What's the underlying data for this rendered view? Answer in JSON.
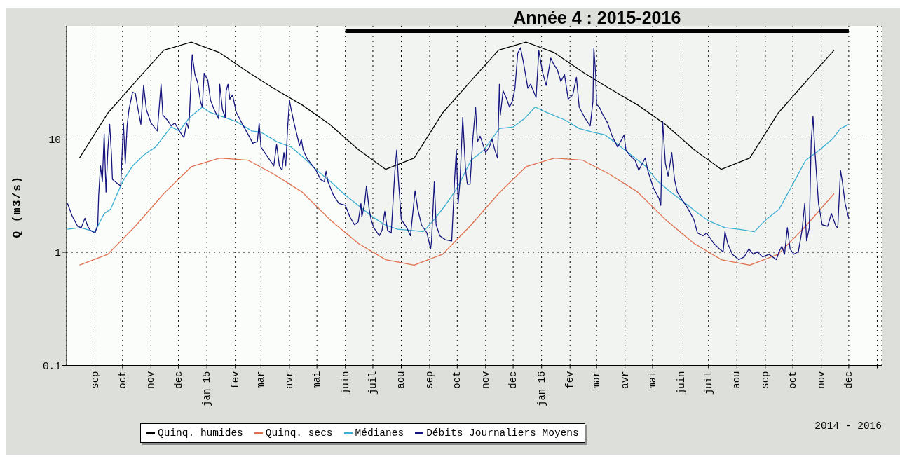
{
  "chart_data": {
    "type": "line",
    "ylabel": "Q (m3/s)",
    "annotations": [
      "2014 - 2016"
    ],
    "xlim": [
      "2014-08-01",
      "2017-01-06"
    ],
    "xticks": [
      {
        "value": "2014-09-01",
        "label": "sep"
      },
      {
        "value": "2014-10-01",
        "label": "oct"
      },
      {
        "value": "2014-11-01",
        "label": "nov"
      },
      {
        "value": "2014-12-01",
        "label": "dec"
      },
      {
        "value": "2015-01-01",
        "label": "jan 15"
      },
      {
        "value": "2015-02-01",
        "label": "fev"
      },
      {
        "value": "2015-03-01",
        "label": "mar"
      },
      {
        "value": "2015-04-01",
        "label": "avr"
      },
      {
        "value": "2015-05-01",
        "label": "mai"
      },
      {
        "value": "2015-06-01",
        "label": "juin"
      },
      {
        "value": "2015-07-01",
        "label": "juil"
      },
      {
        "value": "2015-08-01",
        "label": "aou"
      },
      {
        "value": "2015-09-01",
        "label": "sep"
      },
      {
        "value": "2015-10-01",
        "label": "oct"
      },
      {
        "value": "2015-11-01",
        "label": "nov"
      },
      {
        "value": "2015-12-01",
        "label": "dec"
      },
      {
        "value": "2016-01-01",
        "label": "jan 16"
      },
      {
        "value": "2016-02-01",
        "label": "fev"
      },
      {
        "value": "2016-03-01",
        "label": "mar"
      },
      {
        "value": "2016-04-01",
        "label": "avr"
      },
      {
        "value": "2016-05-01",
        "label": "mai"
      },
      {
        "value": "2016-06-01",
        "label": "juin"
      },
      {
        "value": "2016-07-01",
        "label": "juil"
      },
      {
        "value": "2016-08-01",
        "label": "aou"
      },
      {
        "value": "2016-09-01",
        "label": "sep"
      },
      {
        "value": "2016-10-01",
        "label": "oct"
      },
      {
        "value": "2016-11-01",
        "label": "nov"
      },
      {
        "value": "2016-12-01",
        "label": "dec"
      },
      {
        "value": "2017-01-01",
        "label": null
      }
    ],
    "ylim": [
      0.1,
      100
    ],
    "yticks": [
      0.1,
      1,
      10
    ],
    "log": true,
    "grid": true,
    "legend": "bottom",
    "bands": [
      {
        "axis": "x",
        "from": "2015-06-01",
        "to": "2016-12-01",
        "label": "Année 4 : 2015-2016",
        "color": "#000000"
      }
    ],
    "series": [
      {
        "name": "Quinq. humides",
        "color": "#000000",
        "x": [
          "2014-08-15",
          "2014-09-15",
          "2014-10-15",
          "2014-11-15",
          "2014-12-15",
          "2015-01-15",
          "2015-02-15",
          "2015-03-15",
          "2015-04-15",
          "2015-05-15",
          "2015-06-15",
          "2015-07-15",
          "2015-08-15",
          "2015-09-15",
          "2015-10-15",
          "2015-11-15",
          "2015-12-15",
          "2016-01-15",
          "2016-02-15",
          "2016-03-15",
          "2016-04-15",
          "2016-05-15",
          "2016-06-15",
          "2016-07-15",
          "2016-08-15",
          "2016-09-15",
          "2016-10-15",
          "2016-11-15"
        ],
        "values": [
          6.8,
          17,
          32,
          61,
          72,
          58,
          39,
          28,
          20,
          13.5,
          8.1,
          5.4,
          6.8,
          17,
          32,
          61,
          72,
          58,
          39,
          28,
          20,
          13.5,
          8.1,
          5.4,
          6.8,
          17,
          32,
          61
        ]
      },
      {
        "name": "Quinq. secs",
        "color": "#e0704e",
        "x": [
          "2014-08-15",
          "2014-09-15",
          "2014-10-15",
          "2014-11-15",
          "2014-12-15",
          "2015-01-15",
          "2015-02-15",
          "2015-03-15",
          "2015-04-15",
          "2015-05-15",
          "2015-06-15",
          "2015-07-15",
          "2015-08-15",
          "2015-09-15",
          "2015-10-15",
          "2015-11-15",
          "2015-12-15",
          "2016-01-15",
          "2016-02-15",
          "2016-03-15",
          "2016-04-15",
          "2016-05-15",
          "2016-06-15",
          "2016-07-15",
          "2016-08-15",
          "2016-09-15",
          "2016-10-15",
          "2016-11-15"
        ],
        "values": [
          0.77,
          0.96,
          1.7,
          3.3,
          5.7,
          6.8,
          6.5,
          4.9,
          3.4,
          1.95,
          1.2,
          0.86,
          0.77,
          0.96,
          1.7,
          3.3,
          5.7,
          6.8,
          6.5,
          4.9,
          3.4,
          1.95,
          1.2,
          0.86,
          0.77,
          0.96,
          1.7,
          3.3
        ]
      },
      {
        "name": "Médianes",
        "color": "#3aaed2",
        "x": [
          "2014-08-02",
          "2014-08-16",
          "2014-09-01",
          "2014-09-11",
          "2014-09-18",
          "2014-10-01",
          "2014-10-12",
          "2014-10-24",
          "2014-11-06",
          "2014-11-17",
          "2014-11-23",
          "2014-12-02",
          "2014-12-13",
          "2014-12-27",
          "2015-01-04",
          "2015-01-21",
          "2015-02-02",
          "2015-02-19",
          "2015-03-01",
          "2015-03-18",
          "2015-04-03",
          "2015-04-17",
          "2015-05-02",
          "2015-05-16",
          "2015-06-01",
          "2015-06-15",
          "2015-07-01",
          "2015-07-14",
          "2015-07-28",
          "2015-08-13",
          "2015-08-25",
          "2015-09-06",
          "2015-09-18",
          "2015-10-01",
          "2015-10-16",
          "2015-10-30",
          "2015-11-16",
          "2015-12-01",
          "2015-12-13",
          "2015-12-25",
          "2016-01-06",
          "2016-01-27",
          "2016-02-11",
          "2016-02-26",
          "2016-03-10",
          "2016-03-24",
          "2016-04-08",
          "2016-04-23",
          "2016-05-07",
          "2016-05-21",
          "2016-06-06",
          "2016-06-20",
          "2016-07-01",
          "2016-07-19",
          "2016-08-03",
          "2016-08-20",
          "2016-09-02",
          "2016-09-16",
          "2016-10-01",
          "2016-10-15",
          "2016-10-30",
          "2016-11-13",
          "2016-11-22",
          "2016-12-01"
        ],
        "values": [
          1.6,
          1.65,
          1.52,
          2.2,
          2.4,
          4.2,
          5.8,
          7.2,
          8.5,
          11.1,
          12.8,
          11.8,
          15.5,
          19.2,
          17.3,
          15.5,
          14.3,
          11.8,
          11.5,
          9.5,
          8.5,
          6.8,
          5.2,
          4.2,
          3.2,
          2.6,
          2.05,
          1.75,
          1.6,
          1.56,
          1.52,
          1.95,
          2.6,
          3.7,
          6.5,
          8.0,
          12.4,
          12.8,
          15.1,
          19.2,
          17.3,
          14.7,
          12.4,
          11.5,
          10.9,
          9.0,
          7.2,
          5.8,
          4.2,
          3.4,
          2.7,
          2.2,
          1.9,
          1.65,
          1.6,
          1.52,
          1.95,
          2.4,
          4.0,
          6.5,
          8.0,
          10,
          12.4,
          13.5
        ]
      },
      {
        "name": "Débits Journaliers Moyens",
        "color": "#15157f",
        "x": [
          "2014-08-02",
          "2014-08-07",
          "2014-08-13",
          "2014-08-17",
          "2014-08-21",
          "2014-08-24",
          "2014-08-27",
          "2014-09-01",
          "2014-09-04",
          "2014-09-05",
          "2014-09-07",
          "2014-09-09",
          "2014-09-11",
          "2014-09-13",
          "2014-09-15",
          "2014-09-17",
          "2014-09-19",
          "2014-09-20",
          "2014-09-23",
          "2014-09-29",
          "2014-10-02",
          "2014-10-04",
          "2014-10-06",
          "2014-10-08",
          "2014-10-12",
          "2014-10-15",
          "2014-10-18",
          "2014-10-21",
          "2014-10-24",
          "2014-10-27",
          "2014-11-01",
          "2014-11-08",
          "2014-11-12",
          "2014-11-14",
          "2014-11-19",
          "2014-11-23",
          "2014-11-27",
          "2014-12-02",
          "2014-12-07",
          "2014-12-10",
          "2014-12-12",
          "2014-12-13",
          "2014-12-16",
          "2014-12-19",
          "2014-12-22",
          "2014-12-25",
          "2014-12-27",
          "2014-12-29",
          "2015-01-02",
          "2015-01-05",
          "2015-01-09",
          "2015-01-14",
          "2015-01-15",
          "2015-01-18",
          "2015-01-21",
          "2015-01-22",
          "2015-01-24",
          "2015-01-26",
          "2015-01-29",
          "2015-02-02",
          "2015-02-08",
          "2015-02-16",
          "2015-02-20",
          "2015-02-25",
          "2015-02-27",
          "2015-03-01",
          "2015-03-07",
          "2015-03-15",
          "2015-03-18",
          "2015-03-21",
          "2015-03-24",
          "2015-03-26",
          "2015-03-28",
          "2015-03-30",
          "2015-04-01",
          "2015-04-03",
          "2015-04-06",
          "2015-04-09",
          "2015-04-12",
          "2015-04-14",
          "2015-04-16",
          "2015-04-20",
          "2015-04-25",
          "2015-04-30",
          "2015-05-05",
          "2015-05-09",
          "2015-05-11",
          "2015-05-13",
          "2015-05-19",
          "2015-05-25",
          "2015-06-01",
          "2015-06-06",
          "2015-06-11",
          "2015-06-15",
          "2015-06-18",
          "2015-06-19",
          "2015-06-22",
          "2015-06-24",
          "2015-06-27",
          "2015-06-29",
          "2015-07-02",
          "2015-07-08",
          "2015-07-11",
          "2015-07-14",
          "2015-07-17",
          "2015-07-21",
          "2015-07-25",
          "2015-07-27",
          "2015-07-29",
          "2015-08-01",
          "2015-08-07",
          "2015-08-11",
          "2015-08-14",
          "2015-08-16",
          "2015-08-19",
          "2015-08-23",
          "2015-08-29",
          "2015-09-02",
          "2015-09-03",
          "2015-09-06",
          "2015-09-08",
          "2015-09-12",
          "2015-09-18",
          "2015-09-25",
          "2015-09-28",
          "2015-09-30",
          "2015-10-02",
          "2015-10-04",
          "2015-10-07",
          "2015-10-10",
          "2015-10-12",
          "2015-10-15",
          "2015-10-18",
          "2015-10-21",
          "2015-10-23",
          "2015-10-26",
          "2015-10-29",
          "2015-11-01",
          "2015-11-05",
          "2015-11-08",
          "2015-11-11",
          "2015-11-14",
          "2015-11-16",
          "2015-11-17",
          "2015-11-20",
          "2015-11-24",
          "2015-11-27",
          "2015-11-30",
          "2015-12-03",
          "2015-12-06",
          "2015-12-09",
          "2015-12-12",
          "2015-12-15",
          "2015-12-17",
          "2015-12-20",
          "2015-12-23",
          "2015-12-26",
          "2015-12-29",
          "2016-01-02",
          "2016-01-06",
          "2016-01-11",
          "2016-01-14",
          "2016-01-18",
          "2016-01-22",
          "2016-01-26",
          "2016-01-30",
          "2016-02-04",
          "2016-02-08",
          "2016-02-11",
          "2016-02-17",
          "2016-02-23",
          "2016-02-26",
          "2016-02-27",
          "2016-02-29",
          "2016-03-01",
          "2016-03-04",
          "2016-03-08",
          "2016-03-13",
          "2016-03-18",
          "2016-03-24",
          "2016-03-31",
          "2016-04-02",
          "2016-04-06",
          "2016-04-12",
          "2016-04-16",
          "2016-04-23",
          "2016-04-26",
          "2016-05-02",
          "2016-05-08",
          "2016-05-10",
          "2016-05-12",
          "2016-05-15",
          "2016-05-18",
          "2016-05-22",
          "2016-05-25",
          "2016-05-28",
          "2016-06-01",
          "2016-06-05",
          "2016-06-09",
          "2016-06-15",
          "2016-06-19",
          "2016-06-25",
          "2016-06-29",
          "2016-07-03",
          "2016-07-07",
          "2016-07-13",
          "2016-07-17",
          "2016-07-19",
          "2016-07-22",
          "2016-07-27",
          "2016-08-03",
          "2016-08-09",
          "2016-08-14",
          "2016-08-19",
          "2016-08-23",
          "2016-08-29",
          "2016-09-05",
          "2016-09-13",
          "2016-09-16",
          "2016-09-19",
          "2016-09-22",
          "2016-09-25",
          "2016-09-28",
          "2016-10-02",
          "2016-10-07",
          "2016-10-11",
          "2016-10-14",
          "2016-10-16",
          "2016-10-19",
          "2016-10-21",
          "2016-10-23",
          "2016-10-25",
          "2016-10-29",
          "2016-11-02",
          "2016-11-08",
          "2016-11-12",
          "2016-11-17",
          "2016-11-19",
          "2016-11-22",
          "2016-11-24",
          "2016-11-27",
          "2016-12-01"
        ],
        "values": [
          2.7,
          2.1,
          1.7,
          1.65,
          2.0,
          1.7,
          1.56,
          1.48,
          1.75,
          3.2,
          5.8,
          4.2,
          11.1,
          3.4,
          8.0,
          13.5,
          7.2,
          4.4,
          4.2,
          3.85,
          13.9,
          6.1,
          13.1,
          18.2,
          26,
          25.3,
          18.2,
          13.5,
          29.8,
          18.2,
          13.9,
          11.8,
          30.6,
          16.3,
          14.7,
          13.1,
          13.9,
          11.8,
          10.3,
          13.9,
          12.4,
          16.3,
          55.7,
          37.1,
          31.5,
          21.5,
          19.2,
          38.1,
          33.2,
          22.1,
          18.2,
          15.1,
          30.6,
          18.2,
          15.5,
          26.7,
          30.6,
          22.6,
          24.6,
          17.3,
          13.9,
          10.6,
          9.2,
          9.5,
          13.9,
          8.5,
          7.2,
          5.8,
          9.0,
          5.8,
          5.3,
          7.6,
          5.8,
          12.4,
          22.1,
          18.2,
          13.9,
          11.1,
          8.7,
          10,
          8.0,
          6.8,
          6.0,
          5.3,
          4.4,
          4.2,
          5.2,
          4.2,
          3.2,
          2.7,
          2.6,
          2.05,
          1.75,
          1.85,
          2.7,
          2.05,
          2.7,
          3.85,
          2.4,
          1.95,
          1.65,
          1.4,
          1.56,
          2.3,
          1.56,
          1.48,
          5.2,
          8.0,
          4.2,
          1.95,
          1.65,
          1.4,
          2.4,
          3.5,
          2.4,
          1.75,
          1.48,
          1.07,
          1.26,
          4.2,
          1.75,
          1.4,
          1.29,
          1.26,
          4.2,
          8.0,
          2.7,
          4.2,
          15.5,
          5.5,
          4.0,
          4.0,
          10,
          19.2,
          9.5,
          10.6,
          9.0,
          7.6,
          8.5,
          10,
          8.0,
          6.8,
          30.6,
          16.3,
          26.7,
          22.6,
          19.2,
          21.5,
          28.2,
          57.3,
          64,
          48.6,
          35.1,
          28.2,
          30.6,
          26.7,
          23.3,
          60.5,
          39.1,
          29.8,
          52,
          46.1,
          41.3,
          32.3,
          37.1,
          22.6,
          24.6,
          35.1,
          19.2,
          15.5,
          13.1,
          21.5,
          64,
          37.1,
          20.3,
          19.2,
          16.3,
          13.9,
          10.6,
          8.5,
          10.9,
          8.0,
          7.2,
          6.5,
          5.3,
          6.8,
          5.2,
          3.7,
          3.0,
          2.6,
          14.3,
          6.1,
          4.7,
          7.6,
          4.4,
          3.4,
          3.0,
          2.7,
          2.4,
          1.95,
          1.48,
          1.4,
          1.48,
          1.33,
          1.19,
          1.07,
          1.01,
          1.52,
          1.19,
          0.96,
          0.86,
          0.91,
          1.07,
          0.96,
          1.01,
          0.91,
          0.96,
          0.86,
          1.01,
          1.13,
          0.96,
          1.65,
          1.07,
          0.96,
          1.01,
          1.56,
          2.7,
          1.26,
          1.65,
          9.5,
          15.9,
          8.0,
          2.7,
          1.75,
          1.7,
          2.2,
          1.7,
          1.65,
          5.3,
          4.2,
          2.7,
          2.0
        ]
      }
    ]
  }
}
